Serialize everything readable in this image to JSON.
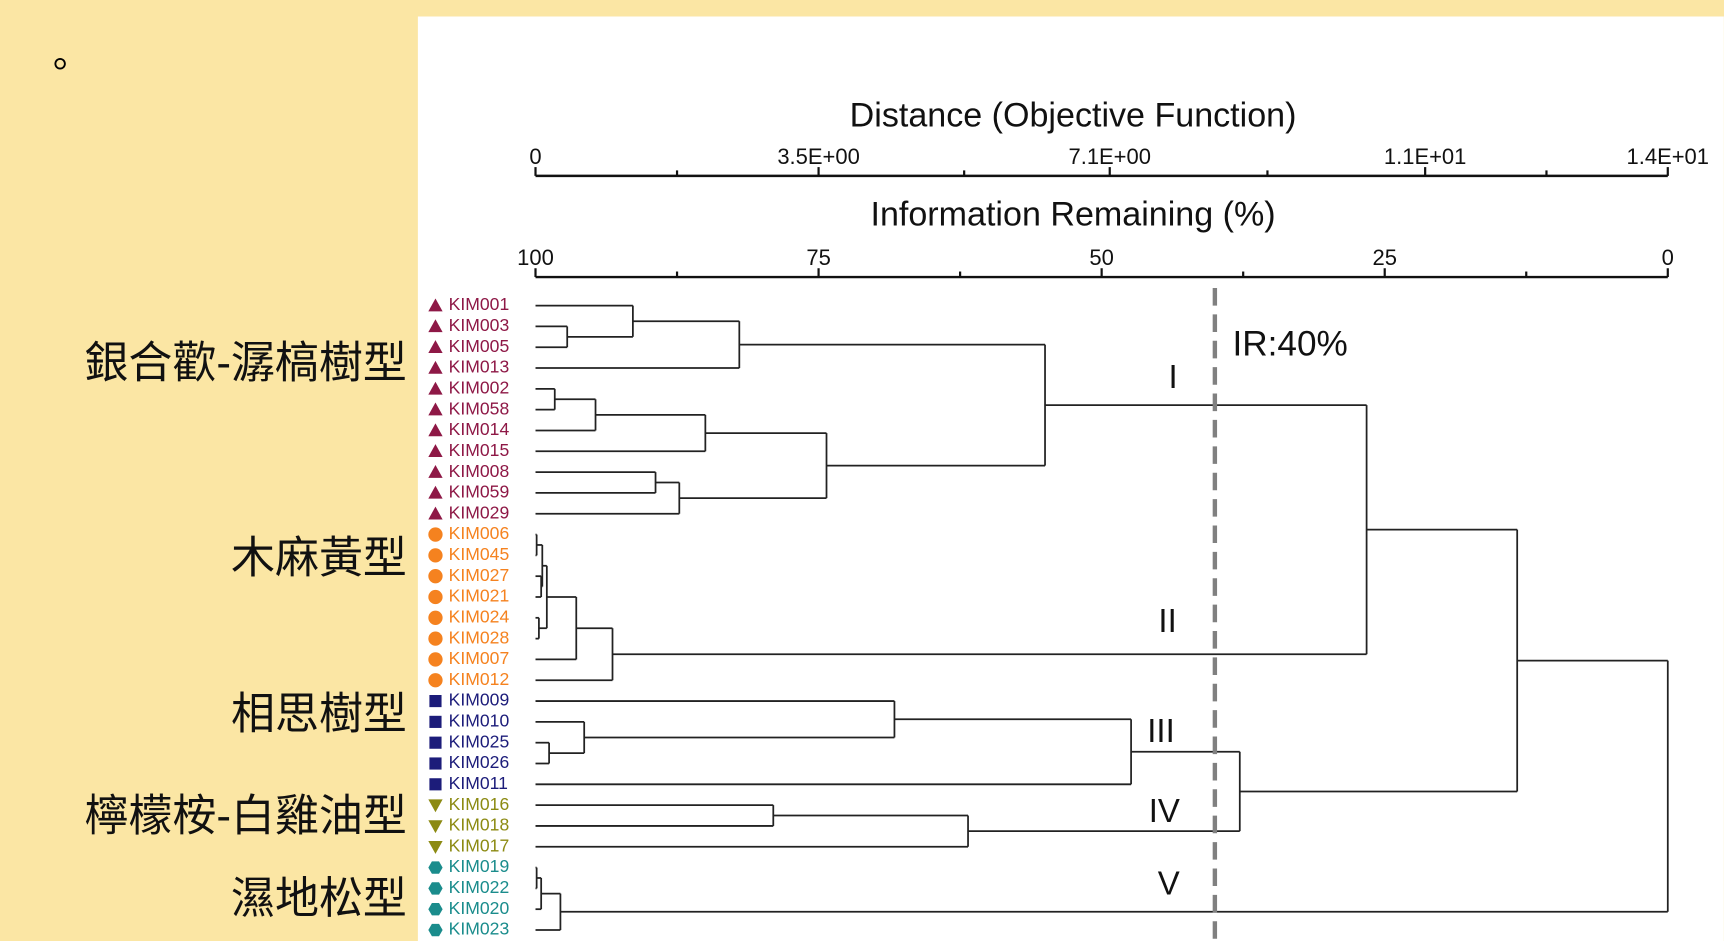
{
  "slide": {
    "bullet": "。"
  },
  "axes": {
    "distance": {
      "title": "Distance (Objective Function)",
      "lim": [
        0,
        14
      ],
      "ticks": [
        0,
        {
          "value": 3.5,
          "label": "3.5E+00"
        },
        {
          "value": 7.1,
          "label": "7.1E+00"
        },
        {
          "value": 11,
          "label": "1.1E+01"
        },
        {
          "value": 14,
          "label": "1.4E+01"
        }
      ]
    },
    "information": {
      "title": "Information Remaining (%)",
      "lim": [
        100,
        0
      ],
      "ticks": [
        100,
        75,
        50,
        25,
        0
      ]
    }
  },
  "cutoff": {
    "ir": 40,
    "label": "IR:40%"
  },
  "clusters": [
    {
      "numeral": "I",
      "type_name": "銀合歡-潺槁樹型",
      "color": "#8e1846",
      "marker": "triangle",
      "leaves": [
        "KIM001",
        "KIM003",
        "KIM005",
        "KIM013",
        "KIM002",
        "KIM058",
        "KIM014",
        "KIM015",
        "KIM008",
        "KIM059",
        "KIM029"
      ]
    },
    {
      "numeral": "II",
      "type_name": "木麻黃型",
      "color": "#f5821f",
      "marker": "circle",
      "leaves": [
        "KIM006",
        "KIM045",
        "KIM027",
        "KIM021",
        "KIM024",
        "KIM028",
        "KIM007",
        "KIM012"
      ]
    },
    {
      "numeral": "III",
      "type_name": "相思樹型",
      "color": "#1c1c7a",
      "marker": "square",
      "leaves": [
        "KIM009",
        "KIM010",
        "KIM025",
        "KIM026",
        "KIM011"
      ]
    },
    {
      "numeral": "IV",
      "type_name": "檸檬桉-白雞油型",
      "color": "#8c8a12",
      "marker": "triangle-down",
      "leaves": [
        "KIM016",
        "KIM018",
        "KIM017"
      ]
    },
    {
      "numeral": "V",
      "type_name": "濕地松型",
      "color": "#1a8c8c",
      "marker": "hexagon",
      "leaves": [
        "KIM019",
        "KIM022",
        "KIM020",
        "KIM023"
      ]
    }
  ],
  "tree": {
    "ir": 0,
    "children": [
      {
        "ir": 13.3,
        "children": [
          {
            "ir": 26.6,
            "children": [
              {
                "ir": 55,
                "children": [
                  {
                    "ir": 82,
                    "children": [
                      {
                        "ir": 91.4,
                        "children": [
                          0,
                          {
                            "ir": 97.2,
                            "children": [
                              1,
                              2
                            ]
                          }
                        ]
                      },
                      3
                    ]
                  },
                  {
                    "ir": 74.3,
                    "children": [
                      {
                        "ir": 85,
                        "children": [
                          {
                            "ir": 94.7,
                            "children": [
                              {
                                "ir": 98.3,
                                "children": [
                                  4,
                                  5
                                ]
                              },
                              6
                            ]
                          },
                          7
                        ]
                      },
                      {
                        "ir": 87.3,
                        "children": [
                          {
                            "ir": 89.4,
                            "children": [
                              8,
                              9
                            ]
                          },
                          10
                        ]
                      }
                    ]
                  }
                ]
              },
              {
                "ir": 93.2,
                "children": [
                  {
                    "ir": 96.4,
                    "children": [
                      {
                        "ir": 99,
                        "children": [
                          {
                            "ir": 99.4,
                            "children": [
                              {
                                "ir": 99.9,
                                "children": [
                                  11,
                                  12
                                ]
                              },
                              {
                                "ir": 99.5,
                                "children": [
                                  13,
                                  14
                                ]
                              }
                            ]
                          },
                          {
                            "ir": 99.7,
                            "children": [
                              15,
                              16
                            ]
                          }
                        ]
                      },
                      17
                    ]
                  },
                  18
                ]
              }
            ]
          },
          {
            "ir": 37.8,
            "children": [
              {
                "ir": 47.4,
                "children": [
                  {
                    "ir": 68.3,
                    "children": [
                      19,
                      {
                        "ir": 95.7,
                        "children": [
                          20,
                          {
                            "ir": 98.8,
                            "children": [
                              21,
                              22
                            ]
                          }
                        ]
                      }
                    ]
                  },
                  23
                ]
              },
              {
                "ir": 61.8,
                "children": [
                  {
                    "ir": 79,
                    "children": [
                      24,
                      25
                    ]
                  },
                  26
                ]
              }
            ]
          }
        ]
      },
      {
        "ir": 97.8,
        "children": [
          {
            "ir": 99.5,
            "children": [
              {
                "ir": 99.9,
                "children": [
                  27,
                  28
                ]
              },
              29
            ]
          },
          30
        ]
      }
    ]
  }
}
